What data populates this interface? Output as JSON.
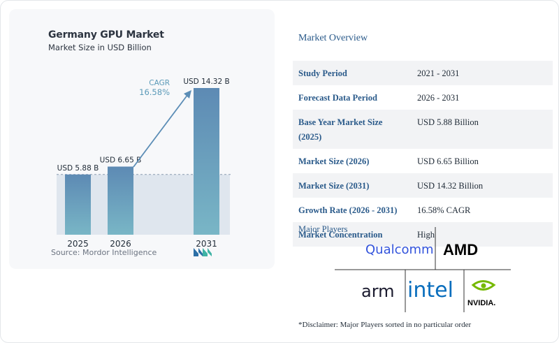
{
  "chart_data": {
    "type": "bar",
    "title": "Germany GPU Market",
    "subtitle": "Market Size in USD Billion",
    "categories": [
      "2025",
      "2026",
      "2031"
    ],
    "values": [
      5.88,
      6.65,
      14.32
    ],
    "data_labels": [
      "USD 5.88 B",
      "USD 6.65 B",
      "USD 14.32 B"
    ],
    "ylim": [
      0,
      14.32
    ],
    "cagr_label": "CAGR",
    "cagr_value": "16.58%",
    "grid": false,
    "bar_color": "#5b8db6"
  },
  "source": "Source:  Mordor Intelligence",
  "overview": {
    "title": "Market Overview",
    "rows": [
      {
        "key": "Study Period",
        "value": "2021 - 2031"
      },
      {
        "key": "Forecast Data Period",
        "value": "2026 - 2031"
      },
      {
        "key": "Base Year Market Size (2025)",
        "value": "USD 5.88 Billion"
      },
      {
        "key": "Market Size (2026)",
        "value": "USD 6.65 Billion"
      },
      {
        "key": "Market Size (2031)",
        "value": "USD 14.32 Billion"
      },
      {
        "key": "Growth Rate (2026 - 2031)",
        "value": "16.58% CAGR"
      },
      {
        "key": "Market Concentration",
        "value": "High"
      }
    ]
  },
  "major_players": {
    "title": "Major Players",
    "logos": [
      "Qualcomm",
      "AMD",
      "arm",
      "intel",
      "NVIDIA"
    ]
  },
  "disclaimer": "*Disclaimer: Major Players sorted in no particular order",
  "colors": {
    "accent": "#2a5a8a",
    "bar": "#5b8db6",
    "arrow": "#5b8db6"
  }
}
